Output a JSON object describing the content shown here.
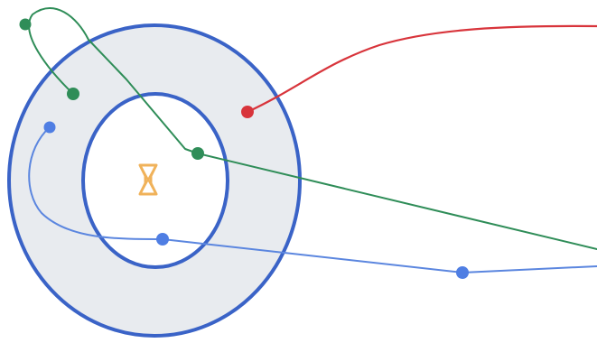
{
  "diagram": {
    "type": "donut-with-connector-paths",
    "colors": {
      "background": "#ffffff",
      "ring_outline": "#3a63c7",
      "ring_fill": "#e8ebef",
      "center_fill": "#ffffff",
      "center_icon": "#f0b25a",
      "green_path": "#2f8d58",
      "green_point": "#2f8d58",
      "blue_path": "#5b86df",
      "blue_point": "#4f7ee3",
      "red_path": "#d8343b",
      "red_point": "#d8343b"
    },
    "paths": [
      {
        "name": "green-path",
        "color_key": "green_path"
      },
      {
        "name": "blue-path",
        "color_key": "blue_path"
      },
      {
        "name": "red-path",
        "color_key": "red_path"
      }
    ],
    "icons": [
      {
        "name": "hourglass-icon",
        "color_key": "center_icon"
      }
    ]
  }
}
